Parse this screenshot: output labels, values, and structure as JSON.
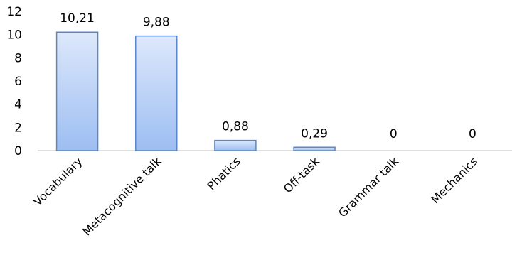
{
  "chart_data": {
    "type": "bar",
    "categories": [
      "Vocabulary",
      "Metacognitive talk",
      "Phatics",
      "Off-task",
      "Grammar talk",
      "Mechanics"
    ],
    "values": [
      10.21,
      9.88,
      0.88,
      0.29,
      0,
      0
    ],
    "data_labels": [
      "10,21",
      "9,88",
      "0,88",
      "0,29",
      "0",
      "0"
    ],
    "ylim": [
      0,
      12
    ],
    "yticks": [
      0,
      2,
      4,
      6,
      8,
      10,
      12
    ],
    "grid": false,
    "legend": "none",
    "bar_fill_top": "#dde8fb",
    "bar_fill_bottom": "#9dbef2",
    "bar_stroke": "#5b86c8"
  }
}
